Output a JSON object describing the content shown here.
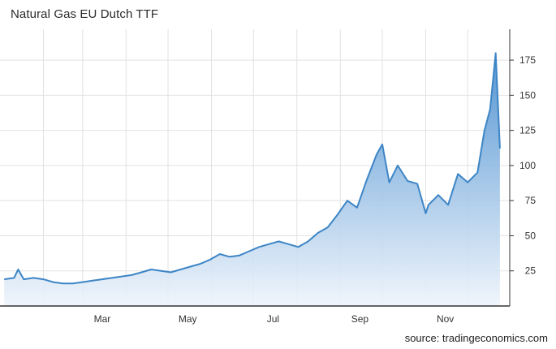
{
  "chart_data": {
    "type": "area",
    "title": "Natural Gas EU Dutch TTF",
    "source": "source: tradingeconomics.com",
    "xlabel": "",
    "ylabel": "",
    "x_tick_labels": [
      "Mar",
      "May",
      "Jul",
      "Sep",
      "Nov"
    ],
    "y_ticks": [
      25,
      50,
      75,
      100,
      125,
      150,
      175
    ],
    "ylim": [
      0,
      197
    ],
    "grid": true,
    "y_axis_position": "right",
    "colors": {
      "line": "#3d85c6",
      "fill_top": "#4a8fd0",
      "fill_bottom": "#eef4fb",
      "grid": "#e2e2e2",
      "axis": "#333333"
    },
    "series": [
      {
        "x": [
          "2021-01-04",
          "2021-01-11",
          "2021-01-14",
          "2021-01-18",
          "2021-01-25",
          "2021-02-01",
          "2021-02-08",
          "2021-02-15",
          "2021-02-22",
          "2021-03-01",
          "2021-03-08",
          "2021-03-15",
          "2021-03-22",
          "2021-03-29",
          "2021-04-05",
          "2021-04-12",
          "2021-04-19",
          "2021-04-26",
          "2021-05-03",
          "2021-05-10",
          "2021-05-17",
          "2021-05-24",
          "2021-05-31",
          "2021-06-07",
          "2021-06-14",
          "2021-06-21",
          "2021-06-28",
          "2021-07-05",
          "2021-07-12",
          "2021-07-19",
          "2021-07-26",
          "2021-08-02",
          "2021-08-09",
          "2021-08-16",
          "2021-08-23",
          "2021-08-30",
          "2021-09-06",
          "2021-09-13",
          "2021-09-20",
          "2021-09-27",
          "2021-10-01",
          "2021-10-06",
          "2021-10-12",
          "2021-10-19",
          "2021-10-26",
          "2021-11-01",
          "2021-11-03",
          "2021-11-10",
          "2021-11-17",
          "2021-11-24",
          "2021-12-01",
          "2021-12-08",
          "2021-12-13",
          "2021-12-17",
          "2021-12-21",
          "2021-12-24"
        ],
        "values": [
          19,
          20,
          26,
          19,
          20,
          19,
          17,
          16,
          16,
          17,
          18,
          19,
          20,
          21,
          22,
          24,
          26,
          25,
          24,
          26,
          28,
          30,
          33,
          37,
          35,
          36,
          39,
          42,
          44,
          46,
          44,
          42,
          46,
          52,
          56,
          65,
          75,
          70,
          90,
          108,
          115,
          88,
          100,
          89,
          87,
          66,
          72,
          79,
          72,
          94,
          88,
          95,
          125,
          140,
          180,
          112
        ]
      }
    ]
  }
}
